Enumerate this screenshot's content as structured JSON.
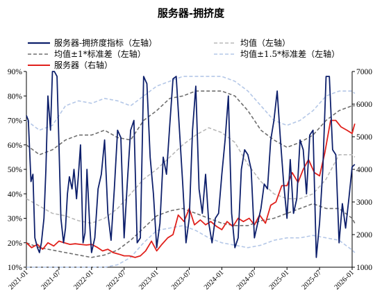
{
  "chart_data": {
    "type": "line",
    "title": "服务器-拥挤度",
    "x_ticks": [
      "2021-01",
      "2021-07",
      "2022-01",
      "2022-07",
      "2023-01",
      "2023-07",
      "2024-01",
      "2024-07",
      "2025-01",
      "2025-07",
      "2026-01"
    ],
    "x_range": [
      "2021-01",
      "2026-01"
    ],
    "y_left": {
      "range": [
        10,
        90
      ],
      "unit": "%",
      "ticks": [
        "10%",
        "20%",
        "30%",
        "40%",
        "50%",
        "60%",
        "70%",
        "80%",
        "90%"
      ]
    },
    "y_right": {
      "range": [
        1000,
        7000
      ],
      "ticks": [
        "1000",
        "2000",
        "3000",
        "4000",
        "5000",
        "6000",
        "7000"
      ]
    },
    "legend": [
      {
        "label": "服务器-拥挤度指标（左轴）",
        "series": "crowding"
      },
      {
        "label": "均值（左轴）",
        "series": "mean"
      },
      {
        "label": "均值±1*标准差（左轴）",
        "series": "band1"
      },
      {
        "label": "均值±1.5*标准差（左轴）",
        "series": "band15"
      },
      {
        "label": "服务器（右轴）",
        "series": "index"
      }
    ],
    "colors": {
      "crowding": "#0d1f6b",
      "mean": "#b8b8b8",
      "band1": "#6e6e6e",
      "band15": "#b4c7e7",
      "index": "#e0201b"
    },
    "series": [
      {
        "key": "crowding",
        "axis": "left",
        "x": [
          2021.0,
          2021.03,
          2021.07,
          2021.1,
          2021.13,
          2021.17,
          2021.2,
          2021.23,
          2021.27,
          2021.3,
          2021.33,
          2021.37,
          2021.4,
          2021.43,
          2021.47,
          2021.5,
          2021.53,
          2021.57,
          2021.6,
          2021.63,
          2021.66,
          2021.7,
          2021.73,
          2021.77,
          2021.8,
          2021.83,
          2021.87,
          2021.9,
          2021.93,
          2021.97,
          2022.0,
          2022.05,
          2022.1,
          2022.15,
          2022.2,
          2022.25,
          2022.3,
          2022.35,
          2022.4,
          2022.45,
          2022.5,
          2022.55,
          2022.6,
          2022.65,
          2022.7,
          2022.75,
          2022.8,
          2022.85,
          2022.9,
          2022.95,
          2023.0,
          2023.05,
          2023.1,
          2023.15,
          2023.2,
          2023.25,
          2023.3,
          2023.35,
          2023.4,
          2023.45,
          2023.5,
          2023.55,
          2023.6,
          2023.65,
          2023.7,
          2023.75,
          2023.8,
          2023.85,
          2023.9,
          2023.95,
          2024.0,
          2024.05,
          2024.1,
          2024.15,
          2024.2,
          2024.25,
          2024.3,
          2024.35,
          2024.4,
          2024.45,
          2024.5,
          2024.55,
          2024.6,
          2024.65,
          2024.7,
          2024.75,
          2024.8,
          2024.85,
          2024.9,
          2024.95,
          2025.0,
          2025.05,
          2025.1,
          2025.15,
          2025.2,
          2025.25,
          2025.3,
          2025.35,
          2025.4,
          2025.45,
          2025.5,
          2025.55,
          2025.6,
          2025.65,
          2025.7,
          2025.75,
          2025.8,
          2025.85,
          2025.9,
          2025.95,
          2026.0,
          2026.04
        ],
        "y": [
          72,
          70,
          45,
          48,
          22,
          18,
          16,
          20,
          30,
          50,
          80,
          66,
          90,
          90,
          88,
          60,
          30,
          20,
          26,
          40,
          47,
          42,
          50,
          38,
          48,
          60,
          20,
          24,
          50,
          28,
          16,
          22,
          42,
          48,
          62,
          32,
          21,
          42,
          66,
          63,
          22,
          45,
          66,
          70,
          20,
          22,
          88,
          85,
          55,
          40,
          18,
          28,
          55,
          48,
          68,
          87,
          88,
          66,
          44,
          20,
          30,
          66,
          84,
          42,
          32,
          48,
          28,
          20,
          30,
          32,
          48,
          62,
          80,
          32,
          18,
          22,
          50,
          58,
          56,
          50,
          22,
          28,
          34,
          44,
          42,
          62,
          70,
          82,
          62,
          44,
          30,
          54,
          32,
          38,
          62,
          58,
          40,
          64,
          66,
          14,
          28,
          50,
          88,
          88,
          58,
          56,
          20,
          36,
          26,
          38,
          51,
          52
        ]
      },
      {
        "key": "mean",
        "axis": "left",
        "x": [
          2021.0,
          2021.2,
          2021.4,
          2021.6,
          2021.8,
          2022.0,
          2022.2,
          2022.4,
          2022.6,
          2022.8,
          2023.0,
          2023.2,
          2023.4,
          2023.6,
          2023.8,
          2024.0,
          2024.2,
          2024.4,
          2024.6,
          2024.8,
          2025.0,
          2025.2,
          2025.4,
          2025.6,
          2025.8,
          2026.0,
          2026.04
        ],
        "y": [
          38,
          35,
          32,
          31,
          29,
          28,
          30,
          34,
          40,
          46,
          50,
          55,
          60,
          64,
          67,
          65,
          61,
          52,
          45,
          40,
          38,
          38,
          40,
          46,
          56,
          56,
          55
        ]
      },
      {
        "key": "band1_upper",
        "axis": "left",
        "x": [
          2021.0,
          2021.2,
          2021.4,
          2021.6,
          2021.8,
          2022.0,
          2022.2,
          2022.4,
          2022.6,
          2022.8,
          2023.0,
          2023.2,
          2023.4,
          2023.6,
          2023.8,
          2024.0,
          2024.2,
          2024.4,
          2024.6,
          2024.8,
          2025.0,
          2025.2,
          2025.4,
          2025.6,
          2025.8,
          2026.0,
          2026.04
        ],
        "y": [
          60,
          56,
          58,
          62,
          64,
          64,
          66,
          63,
          62,
          70,
          74,
          79,
          80,
          82,
          82,
          82,
          80,
          74,
          66,
          62,
          59,
          61,
          64,
          70,
          74,
          76,
          76
        ]
      },
      {
        "key": "band1_lower",
        "axis": "left",
        "x": [
          2021.0,
          2021.2,
          2021.4,
          2021.6,
          2021.8,
          2022.0,
          2022.2,
          2022.4,
          2022.6,
          2022.8,
          2023.0,
          2023.2,
          2023.4,
          2023.6,
          2023.8,
          2024.0,
          2024.2,
          2024.4,
          2024.6,
          2024.8,
          2025.0,
          2025.2,
          2025.4,
          2025.6,
          2025.8,
          2026.0,
          2026.04
        ],
        "y": [
          20,
          18,
          17,
          16,
          15,
          14,
          15,
          17,
          21,
          26,
          31,
          33,
          34,
          32,
          30,
          28,
          27,
          27,
          29,
          30,
          32,
          34,
          36,
          34,
          34,
          30,
          28
        ]
      },
      {
        "key": "band15_upper",
        "axis": "left",
        "x": [
          2021.0,
          2021.2,
          2021.4,
          2021.6,
          2021.8,
          2022.0,
          2022.2,
          2022.4,
          2022.6,
          2022.8,
          2023.0,
          2023.2,
          2023.4,
          2023.6,
          2023.8,
          2024.0,
          2024.2,
          2024.4,
          2024.6,
          2024.8,
          2025.0,
          2025.2,
          2025.4,
          2025.6,
          2025.8,
          2026.0,
          2026.04
        ],
        "y": [
          70,
          66,
          68,
          76,
          78,
          77,
          79,
          78,
          76,
          80,
          84,
          86,
          88,
          88,
          88,
          88,
          86,
          82,
          76,
          70,
          68,
          70,
          74,
          80,
          82,
          82,
          81
        ]
      },
      {
        "key": "band15_lower",
        "axis": "left",
        "x": [
          2021.0,
          2021.2,
          2021.4,
          2021.6,
          2021.8,
          2022.0,
          2022.2,
          2022.4,
          2022.6,
          2022.8,
          2023.0,
          2023.2,
          2023.4,
          2023.6,
          2023.8,
          2024.0,
          2024.2,
          2024.4,
          2024.6,
          2024.8,
          2025.0,
          2025.2,
          2025.4,
          2025.6,
          2025.8,
          2026.0,
          2026.04
        ],
        "y": [
          10,
          8,
          8,
          8,
          9,
          10,
          10,
          11,
          14,
          20,
          25,
          26,
          27,
          25,
          22,
          20,
          19,
          18,
          19,
          21,
          22,
          22,
          23,
          22,
          21,
          17,
          16
        ]
      },
      {
        "key": "index",
        "axis": "right",
        "x": [
          2021.0,
          2021.08,
          2021.17,
          2021.25,
          2021.33,
          2021.42,
          2021.5,
          2021.58,
          2021.67,
          2021.75,
          2021.83,
          2021.92,
          2022.0,
          2022.08,
          2022.17,
          2022.25,
          2022.33,
          2022.42,
          2022.5,
          2022.58,
          2022.67,
          2022.75,
          2022.83,
          2022.92,
          2023.0,
          2023.08,
          2023.17,
          2023.25,
          2023.33,
          2023.42,
          2023.5,
          2023.58,
          2023.67,
          2023.75,
          2023.83,
          2023.92,
          2024.0,
          2024.08,
          2024.17,
          2024.25,
          2024.33,
          2024.42,
          2024.5,
          2024.58,
          2024.67,
          2024.75,
          2024.83,
          2024.92,
          2025.0,
          2025.08,
          2025.17,
          2025.25,
          2025.33,
          2025.42,
          2025.5,
          2025.58,
          2025.67,
          2025.75,
          2025.83,
          2025.92,
          2026.0,
          2026.04
        ],
        "y": [
          1750,
          1600,
          1700,
          1550,
          1750,
          1650,
          1800,
          1750,
          1700,
          1720,
          1700,
          1680,
          1700,
          1620,
          1500,
          1550,
          1450,
          1400,
          1350,
          1350,
          1300,
          1350,
          1500,
          1800,
          1500,
          1700,
          1900,
          2000,
          2600,
          2400,
          2800,
          2300,
          2450,
          2300,
          2400,
          2250,
          2150,
          2400,
          2250,
          2500,
          2400,
          2500,
          2300,
          2600,
          2350,
          2900,
          3000,
          3500,
          3500,
          3900,
          3600,
          4000,
          4300,
          3900,
          3800,
          4500,
          5500,
          5500,
          5300,
          5200,
          5100,
          5400
        ]
      }
    ]
  }
}
